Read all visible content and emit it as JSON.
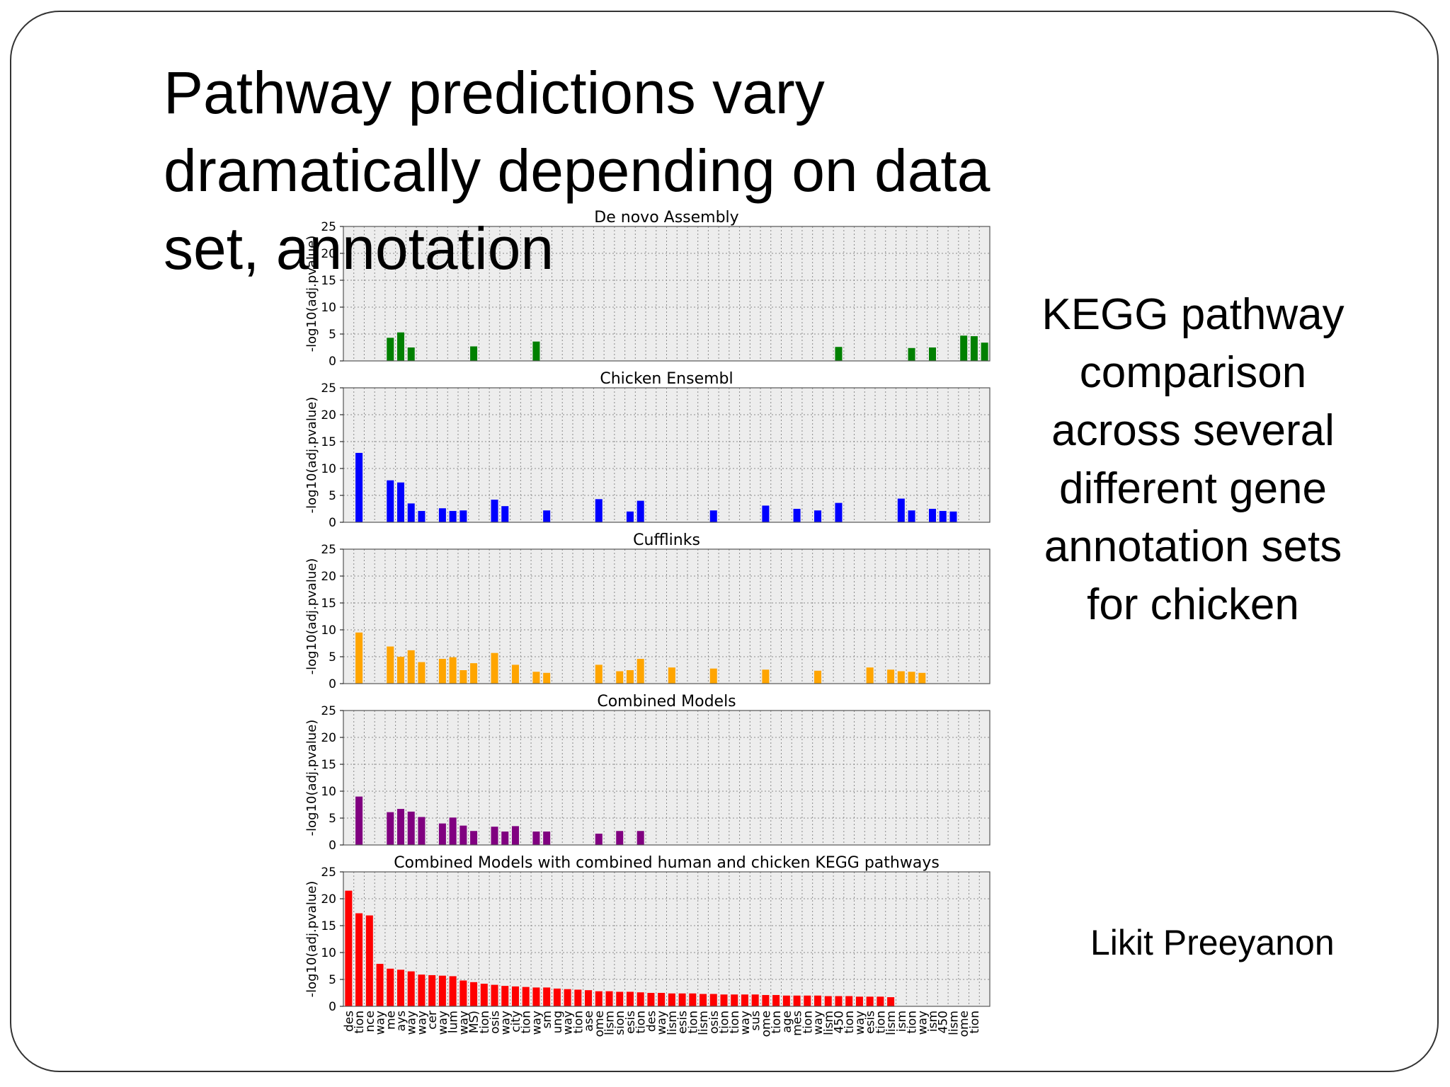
{
  "slide": {
    "title": "Pathway predictions vary dramatically depending on data set, annotation",
    "side_caption": "KEGG pathway comparison across several different gene annotation sets for chicken",
    "author": "Likit Preeyanon"
  },
  "chart_data": [
    {
      "type": "bar",
      "title": "De novo Assembly",
      "ylabel": "-log10(adj.pvalue)",
      "ylim": [
        0,
        25
      ],
      "yticks": [
        0,
        5,
        10,
        15,
        20,
        25
      ],
      "grid": true,
      "color": "#008000",
      "bars": [
        [
          4,
          4.3
        ],
        [
          5,
          5.3
        ],
        [
          6,
          2.5
        ],
        [
          12,
          2.7
        ],
        [
          18,
          3.6
        ],
        [
          47,
          2.6
        ],
        [
          54,
          2.4
        ],
        [
          56,
          2.5
        ],
        [
          59,
          4.7
        ],
        [
          60,
          4.6
        ],
        [
          61,
          3.4
        ]
      ]
    },
    {
      "type": "bar",
      "title": "Chicken Ensembl",
      "ylabel": "-log10(adj.pvalue)",
      "ylim": [
        0,
        25
      ],
      "yticks": [
        0,
        5,
        10,
        15,
        20,
        25
      ],
      "grid": true,
      "color": "#0000ff",
      "bars": [
        [
          1,
          12.9
        ],
        [
          4,
          7.8
        ],
        [
          5,
          7.4
        ],
        [
          6,
          3.5
        ],
        [
          7,
          2.1
        ],
        [
          9,
          2.6
        ],
        [
          10,
          2.1
        ],
        [
          11,
          2.2
        ],
        [
          14,
          4.2
        ],
        [
          15,
          3.0
        ],
        [
          19,
          2.2
        ],
        [
          24,
          4.3
        ],
        [
          27,
          2.0
        ],
        [
          28,
          4.0
        ],
        [
          35,
          2.2
        ],
        [
          40,
          3.1
        ],
        [
          43,
          2.5
        ],
        [
          45,
          2.2
        ],
        [
          47,
          3.6
        ],
        [
          53,
          4.4
        ],
        [
          54,
          2.2
        ],
        [
          56,
          2.5
        ],
        [
          57,
          2.1
        ],
        [
          58,
          2.0
        ]
      ]
    },
    {
      "type": "bar",
      "title": "Cufflinks",
      "ylabel": "-log10(adj.pvalue)",
      "ylim": [
        0,
        25
      ],
      "yticks": [
        0,
        5,
        10,
        15,
        20,
        25
      ],
      "grid": true,
      "color": "#ffa500",
      "bars": [
        [
          1,
          9.5
        ],
        [
          4,
          6.9
        ],
        [
          5,
          5.0
        ],
        [
          6,
          6.2
        ],
        [
          7,
          4.0
        ],
        [
          9,
          4.6
        ],
        [
          10,
          4.9
        ],
        [
          11,
          2.5
        ],
        [
          12,
          3.8
        ],
        [
          14,
          5.7
        ],
        [
          16,
          3.5
        ],
        [
          18,
          2.2
        ],
        [
          19,
          2.0
        ],
        [
          24,
          3.5
        ],
        [
          26,
          2.3
        ],
        [
          27,
          2.5
        ],
        [
          28,
          4.6
        ],
        [
          31,
          3.0
        ],
        [
          35,
          2.8
        ],
        [
          40,
          2.6
        ],
        [
          45,
          2.4
        ],
        [
          50,
          3.0
        ],
        [
          52,
          2.6
        ],
        [
          53,
          2.3
        ],
        [
          54,
          2.2
        ],
        [
          55,
          2.0
        ]
      ]
    },
    {
      "type": "bar",
      "title": "Combined Models",
      "ylabel": "-log10(adj.pvalue)",
      "ylim": [
        0,
        25
      ],
      "yticks": [
        0,
        5,
        10,
        15,
        20,
        25
      ],
      "grid": true,
      "color": "#800080",
      "bars": [
        [
          1,
          9.0
        ],
        [
          4,
          6.1
        ],
        [
          5,
          6.7
        ],
        [
          6,
          6.2
        ],
        [
          7,
          5.2
        ],
        [
          9,
          4.0
        ],
        [
          10,
          5.1
        ],
        [
          11,
          3.6
        ],
        [
          12,
          2.6
        ],
        [
          14,
          3.4
        ],
        [
          15,
          2.5
        ],
        [
          16,
          3.5
        ],
        [
          18,
          2.5
        ],
        [
          19,
          2.5
        ],
        [
          24,
          2.1
        ],
        [
          26,
          2.6
        ],
        [
          28,
          2.6
        ]
      ]
    },
    {
      "type": "bar",
      "title": "Combined Models with combined human and chicken KEGG pathways",
      "ylabel": "-log10(adj.pvalue)",
      "ylim": [
        0,
        25
      ],
      "yticks": [
        0,
        5,
        10,
        15,
        20,
        25
      ],
      "grid": true,
      "color": "#ff0000",
      "bars": [
        [
          0,
          21.5
        ],
        [
          1,
          17.3
        ],
        [
          2,
          16.9
        ],
        [
          3,
          7.9
        ],
        [
          4,
          7.0
        ],
        [
          5,
          6.8
        ],
        [
          6,
          6.5
        ],
        [
          7,
          5.9
        ],
        [
          8,
          5.8
        ],
        [
          9,
          5.7
        ],
        [
          10,
          5.6
        ],
        [
          11,
          4.8
        ],
        [
          12,
          4.5
        ],
        [
          13,
          4.2
        ],
        [
          14,
          4.0
        ],
        [
          15,
          3.8
        ],
        [
          16,
          3.7
        ],
        [
          17,
          3.6
        ],
        [
          18,
          3.5
        ],
        [
          19,
          3.5
        ],
        [
          20,
          3.3
        ],
        [
          21,
          3.2
        ],
        [
          22,
          3.1
        ],
        [
          23,
          3.0
        ],
        [
          24,
          2.8
        ],
        [
          25,
          2.8
        ],
        [
          26,
          2.7
        ],
        [
          27,
          2.7
        ],
        [
          28,
          2.6
        ],
        [
          29,
          2.5
        ],
        [
          30,
          2.5
        ],
        [
          31,
          2.4
        ],
        [
          32,
          2.4
        ],
        [
          33,
          2.4
        ],
        [
          34,
          2.3
        ],
        [
          35,
          2.3
        ],
        [
          36,
          2.2
        ],
        [
          37,
          2.2
        ],
        [
          38,
          2.2
        ],
        [
          39,
          2.2
        ],
        [
          40,
          2.1
        ],
        [
          41,
          2.1
        ],
        [
          42,
          2.0
        ],
        [
          43,
          2.0
        ],
        [
          44,
          2.0
        ],
        [
          45,
          2.0
        ],
        [
          46,
          1.9
        ],
        [
          47,
          1.9
        ],
        [
          48,
          1.9
        ],
        [
          49,
          1.8
        ],
        [
          50,
          1.8
        ],
        [
          51,
          1.8
        ],
        [
          52,
          1.7
        ]
      ]
    }
  ],
  "x_categories": [
    "des",
    "tion",
    "nce",
    "way",
    "me",
    "ays",
    "way",
    "way",
    "cer",
    "way",
    "lum",
    "way",
    "MS)",
    "tion",
    "osis",
    "way",
    "city",
    "tion",
    "way",
    "sm",
    "ung",
    "way",
    "tion",
    "ase",
    "ome",
    "lism",
    "sion",
    "esis",
    "tion",
    "des",
    "way",
    "lism",
    "esis",
    "tion",
    "lism",
    "osis",
    "tion",
    "tion",
    "way",
    "sus",
    "ome",
    "tion",
    "age",
    "mes",
    "tion",
    "way",
    "lism",
    "450",
    "tion",
    "way",
    "esis",
    "tion",
    "lism",
    "ism",
    "tion",
    "way",
    "ism",
    "450",
    "lism",
    "ome",
    "tion"
  ]
}
